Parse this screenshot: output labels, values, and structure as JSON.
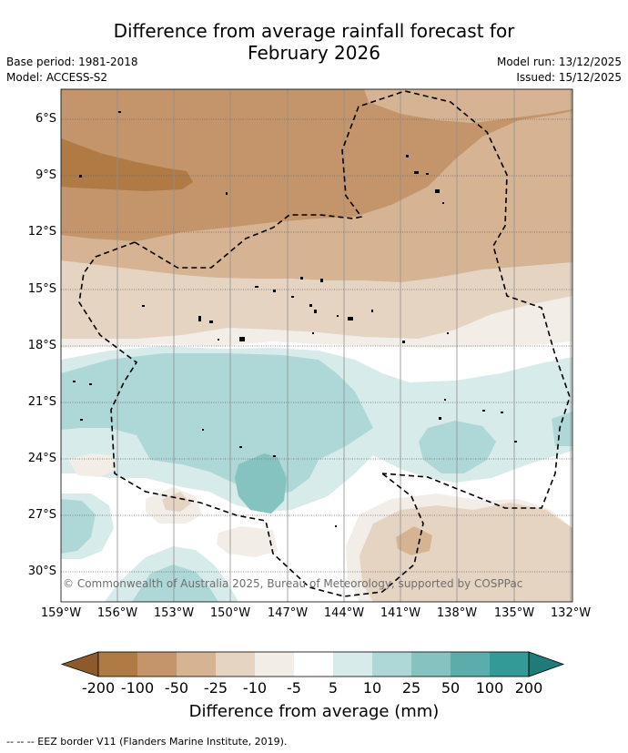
{
  "title_line1": "Difference from average rainfall forecast for",
  "title_line2": "February 2026",
  "base_period": "Base period: 1981-2018",
  "model": "Model: ACCESS-S2",
  "model_run": "Model run: 13/12/2025",
  "issued": "Issued: 15/12/2025",
  "lat_labels": [
    "6°S",
    "9°S",
    "12°S",
    "15°S",
    "18°S",
    "21°S",
    "24°S",
    "27°S",
    "30°S"
  ],
  "lon_labels": [
    "159°W",
    "156°W",
    "153°W",
    "150°W",
    "147°W",
    "144°W",
    "141°W",
    "138°W",
    "135°W",
    "132°W"
  ],
  "copyright": "© Commonwealth of Australia 2025, Bureau of Meteorology, supported by COSPPac",
  "colorbar": {
    "labels": [
      "-200",
      "-100",
      "-50",
      "-25",
      "-10",
      "-5",
      "5",
      "10",
      "25",
      "50",
      "100",
      "200"
    ],
    "colors": [
      "#8c5a2b",
      "#b07a45",
      "#c4956a",
      "#d6b493",
      "#e6d4c3",
      "#f2ede6",
      "#ffffff",
      "#d7ebea",
      "#aed8d7",
      "#85c3c1",
      "#5aadab",
      "#349a97",
      "#1f7a78"
    ],
    "title": "Difference from average (mm)"
  },
  "footnote": "--  --  -- EEZ border V11 (Flanders Marine Institute, 2019)."
}
